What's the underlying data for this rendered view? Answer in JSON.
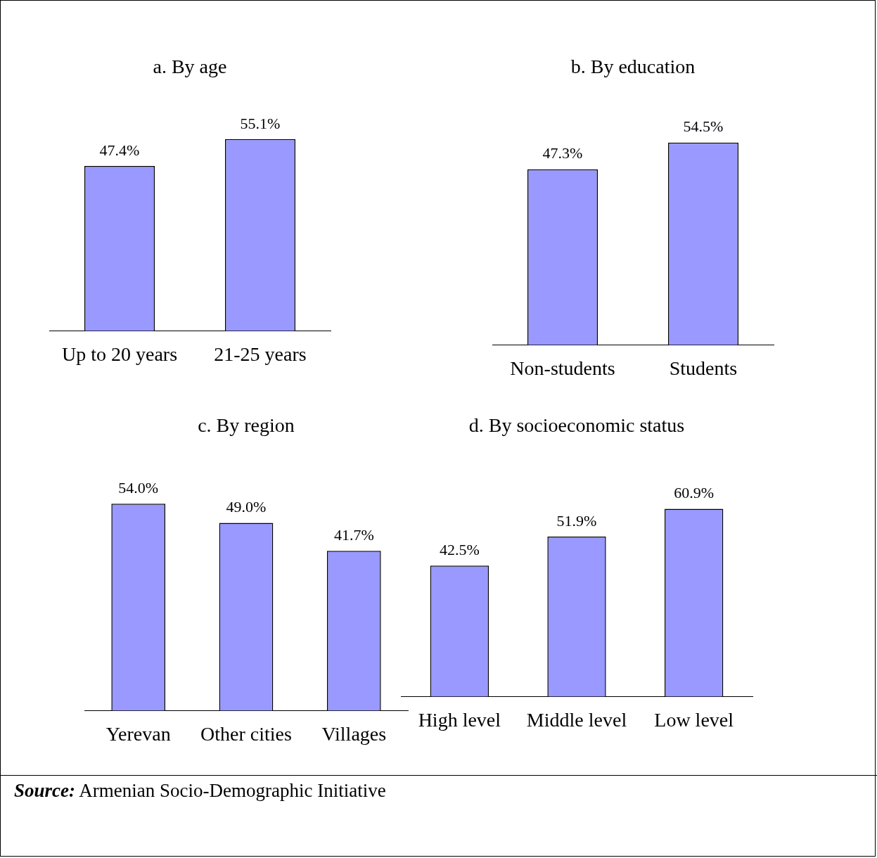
{
  "chart_data": [
    {
      "type": "bar",
      "title": "a. By age",
      "categories": [
        "Up to 20 years",
        "21-25 years"
      ],
      "values": [
        47.4,
        55.1
      ],
      "color": "#9999ff",
      "value_labels": [
        "47.4%",
        "55.1%"
      ],
      "tick_labels": "x"
    },
    {
      "type": "bar",
      "title": "b. By education",
      "categories": [
        "Non-students",
        "Students"
      ],
      "values": [
        47.3,
        54.5
      ],
      "color": "#9999ff",
      "value_labels": [
        "47.3%",
        "54.5%"
      ],
      "tick_labels": "x"
    },
    {
      "type": "bar",
      "title": "c. By region",
      "categories": [
        "Yerevan",
        "Other cities",
        "Villages"
      ],
      "values": [
        54.0,
        49.0,
        41.7
      ],
      "color": "#9999ff",
      "value_labels": [
        "54.0%",
        "49.0%",
        "41.7%"
      ],
      "tick_labels": "x"
    },
    {
      "type": "bar",
      "title": "d. By socioeconomic status",
      "categories": [
        "High level",
        "Middle level",
        "Low level"
      ],
      "values": [
        42.5,
        51.9,
        60.9
      ],
      "color": "#9999ff",
      "value_labels": [
        "42.5%",
        "51.9%",
        "60.9%"
      ],
      "tick_labels": "x",
      "annotations": [
        "Source: Armenian Socio-Demographic Initiative"
      ]
    }
  ]
}
